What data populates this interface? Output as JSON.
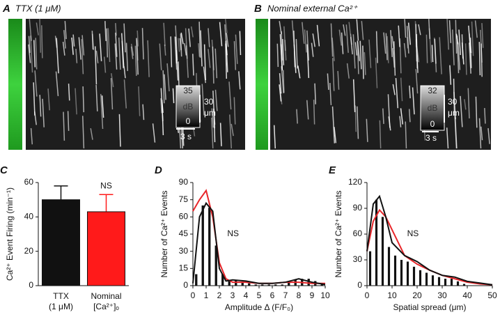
{
  "panels": {
    "a": {
      "letter": "A",
      "title": "TTX (1 μM)",
      "scale_top": "35",
      "scale_unit": "dB",
      "scale_bottom": "0",
      "space": "30",
      "space_unit": "μm",
      "time": "3 s"
    },
    "b": {
      "letter": "B",
      "title": "Nominal external Ca²⁺",
      "scale_top": "32",
      "scale_unit": "dB",
      "scale_bottom": "0",
      "space": "30",
      "space_unit": "μm",
      "time": "3 s"
    }
  },
  "chart_data": [
    {
      "type": "bar",
      "letter": "C",
      "y_label": "Ca²⁺ Event Firing (min⁻¹)",
      "categories": [
        [
          "TTX",
          "(1 μM)"
        ],
        [
          "Nominal",
          "[Ca²⁺]ₒ"
        ]
      ],
      "values": [
        50,
        43
      ],
      "errors": [
        8,
        10
      ],
      "colors": [
        "#111111",
        "#ff1a1a"
      ],
      "category_colors": [
        "#111111",
        "#ff1a1a"
      ],
      "annotation": "NS",
      "annotation_color": "#e8262a",
      "ylim": [
        0,
        60
      ],
      "yticks": [
        0,
        20,
        40,
        60
      ]
    },
    {
      "type": "histogram",
      "letter": "D",
      "x_label": "Amplitude Δ (F/F₀)",
      "y_label": "Number of Ca²⁺ Events",
      "bins": [
        0,
        0.5,
        1,
        1.5,
        2,
        2.5,
        3,
        3.5,
        4,
        4.5,
        5,
        5.5,
        6,
        6.5,
        7,
        7.5,
        8,
        8.5,
        9,
        9.5,
        10
      ],
      "counts": [
        10,
        70,
        68,
        35,
        10,
        5,
        5,
        3,
        2,
        1,
        1,
        1,
        1,
        1,
        3,
        5,
        6,
        6,
        4,
        1
      ],
      "bar_color": "#111111",
      "series": [
        {
          "name": "Nominal",
          "color": "#e8262a",
          "x": [
            0,
            0.5,
            1,
            1.5,
            2,
            2.5,
            3,
            4,
            5,
            6,
            7,
            8,
            9,
            10
          ],
          "values": [
            65,
            75,
            83,
            60,
            20,
            6,
            3,
            3,
            2,
            2,
            3,
            3,
            2,
            2
          ]
        },
        {
          "name": "TTX",
          "color": "#111111",
          "x": [
            0,
            0.5,
            1,
            1.5,
            2,
            2.5,
            3,
            4,
            5,
            6,
            7,
            8,
            9,
            10
          ],
          "values": [
            2,
            60,
            72,
            65,
            15,
            4,
            5,
            4,
            2,
            2,
            3,
            6,
            3,
            1
          ]
        }
      ],
      "annotation": "NS",
      "annotation_x": 2.6,
      "annotation_y": 45,
      "annotation_color": "#e8262a",
      "xlim": [
        0,
        10
      ],
      "xticks": [
        0,
        1,
        2,
        3,
        4,
        5,
        6,
        7,
        8,
        9,
        10
      ],
      "ylim": [
        0,
        90
      ],
      "yticks": [
        0,
        15,
        30,
        45,
        60,
        75,
        90
      ]
    },
    {
      "type": "histogram",
      "letter": "E",
      "x_label": "Spatial spread (μm)",
      "y_label": "Number of Ca²⁺ Events",
      "bins": [
        0,
        2.5,
        5,
        7.5,
        10,
        12.5,
        15,
        17.5,
        20,
        22.5,
        25,
        27.5,
        30,
        32.5,
        35,
        37.5,
        40
      ],
      "counts": [
        40,
        100,
        80,
        45,
        35,
        30,
        28,
        22,
        18,
        15,
        12,
        10,
        8,
        8,
        5,
        2
      ],
      "bar_color": "#111111",
      "series": [
        {
          "name": "Nominal",
          "color": "#e8262a",
          "x": [
            0,
            2.5,
            5,
            7.5,
            10,
            15,
            20,
            25,
            30,
            35,
            40,
            45,
            50
          ],
          "values": [
            40,
            75,
            88,
            80,
            65,
            35,
            25,
            18,
            12,
            8,
            4,
            2,
            1
          ]
        },
        {
          "name": "TTX",
          "color": "#111111",
          "x": [
            0,
            2.5,
            5,
            7.5,
            10,
            15,
            20,
            25,
            30,
            35,
            40,
            45,
            50
          ],
          "values": [
            40,
            95,
            104,
            80,
            50,
            35,
            28,
            18,
            12,
            10,
            5,
            3,
            1
          ]
        }
      ],
      "annotation": "NS",
      "annotation_x": 16,
      "annotation_y": 60,
      "annotation_color": "#e8262a",
      "xlim": [
        0,
        50
      ],
      "xticks": [
        0,
        10,
        20,
        30,
        40,
        50
      ],
      "ylim": [
        0,
        120
      ],
      "yticks": [
        0,
        30,
        60,
        90,
        120
      ]
    }
  ]
}
